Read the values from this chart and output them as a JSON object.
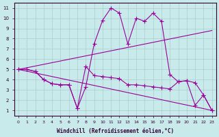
{
  "xlabel": "Windchill (Refroidissement éolien,°C)",
  "background_color": "#c8eaea",
  "grid_color": "#aacccc",
  "line_color": "#990099",
  "xlim": [
    -0.5,
    23.5
  ],
  "ylim": [
    0.5,
    11.5
  ],
  "xticks": [
    0,
    1,
    2,
    3,
    4,
    5,
    6,
    7,
    8,
    9,
    10,
    11,
    12,
    13,
    14,
    15,
    16,
    17,
    18,
    19,
    20,
    21,
    22,
    23
  ],
  "yticks": [
    1,
    2,
    3,
    4,
    5,
    6,
    7,
    8,
    9,
    10,
    11
  ],
  "line1_x": [
    0,
    1,
    2,
    3,
    4,
    5,
    6,
    7,
    8,
    9,
    10,
    11,
    12,
    13,
    14,
    15,
    16,
    17,
    18,
    19,
    20,
    21,
    22,
    23
  ],
  "line1_y": [
    5.0,
    5.0,
    4.8,
    4.0,
    3.6,
    3.5,
    3.5,
    1.2,
    3.3,
    7.5,
    9.8,
    11.0,
    10.5,
    7.5,
    10.0,
    9.7,
    10.5,
    9.7,
    4.5,
    3.8,
    3.9,
    1.5,
    2.5,
    1.0
  ],
  "line2_x": [
    0,
    23
  ],
  "line2_y": [
    5.0,
    8.8
  ],
  "line3_x": [
    0,
    23
  ],
  "line3_y": [
    5.0,
    1.0
  ],
  "line4_x": [
    0,
    1,
    2,
    3,
    4,
    5,
    6,
    7,
    8,
    9,
    10,
    11,
    12,
    13,
    14,
    15,
    16,
    17,
    18,
    19,
    20,
    21,
    22,
    23
  ],
  "line4_y": [
    5.0,
    5.0,
    4.8,
    4.0,
    3.6,
    3.5,
    3.5,
    1.2,
    5.3,
    4.4,
    4.3,
    4.2,
    4.1,
    3.5,
    3.5,
    3.4,
    3.3,
    3.2,
    3.1,
    3.8,
    3.9,
    3.7,
    2.5,
    1.0
  ]
}
